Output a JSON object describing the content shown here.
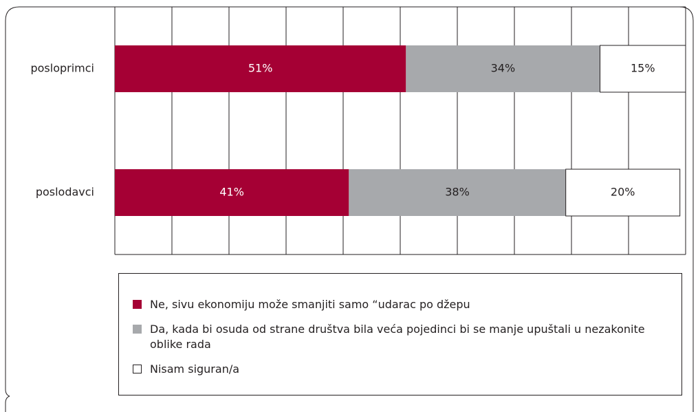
{
  "chart_data": {
    "type": "stacked-barh",
    "categories": [
      "posloprimci",
      "poslodavci"
    ],
    "series": [
      {
        "name": "Ne, sivu ekonomiju može smanjiti samo “udarac po džepu",
        "color": "#a50034",
        "values": [
          51,
          41
        ],
        "value_labels": [
          "51%",
          "41%"
        ]
      },
      {
        "name": "Da, kada bi osuda od strane društva bila veća pojedinci bi se manje upuštali u nezakonite oblike rada",
        "color": "#a7a9ac",
        "values": [
          34,
          38
        ],
        "value_labels": [
          "34%",
          "38%"
        ]
      },
      {
        "name": "Nisam siguran/a",
        "color": "#ffffff",
        "values": [
          15,
          20
        ],
        "value_labels": [
          "15%",
          "20%"
        ]
      }
    ],
    "xlim": [
      0,
      100
    ],
    "xticks": [
      0,
      10,
      20,
      30,
      40,
      50,
      60,
      70,
      80,
      90,
      100
    ],
    "grid": true
  }
}
